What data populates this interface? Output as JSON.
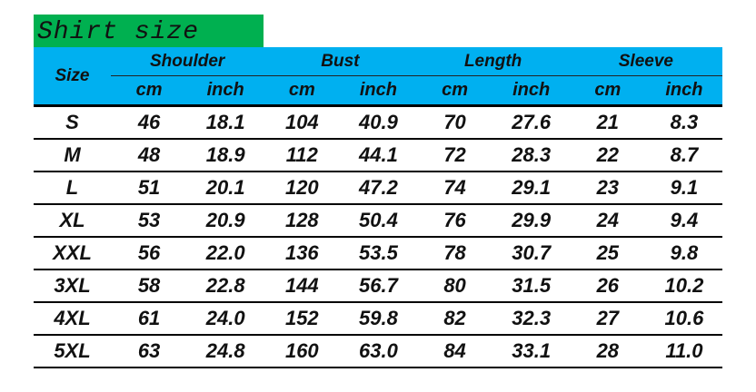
{
  "title": "Shirt size",
  "colors": {
    "title_bg": "#00b050",
    "header_bg": "#00b0f0"
  },
  "header": {
    "size": "Size",
    "groups": [
      "Shoulder",
      "Bust",
      "Length",
      "Sleeve"
    ],
    "units": [
      "cm",
      "inch",
      "cm",
      "inch",
      "cm",
      "inch",
      "cm",
      "inch"
    ]
  },
  "rows": [
    [
      "S",
      "46",
      "18.1",
      "104",
      "40.9",
      "70",
      "27.6",
      "21",
      "8.3"
    ],
    [
      "M",
      "48",
      "18.9",
      "112",
      "44.1",
      "72",
      "28.3",
      "22",
      "8.7"
    ],
    [
      "L",
      "51",
      "20.1",
      "120",
      "47.2",
      "74",
      "29.1",
      "23",
      "9.1"
    ],
    [
      "XL",
      "53",
      "20.9",
      "128",
      "50.4",
      "76",
      "29.9",
      "24",
      "9.4"
    ],
    [
      "XXL",
      "56",
      "22.0",
      "136",
      "53.5",
      "78",
      "30.7",
      "25",
      "9.8"
    ],
    [
      "3XL",
      "58",
      "22.8",
      "144",
      "56.7",
      "80",
      "31.5",
      "26",
      "10.2"
    ],
    [
      "4XL",
      "61",
      "24.0",
      "152",
      "59.8",
      "82",
      "32.3",
      "27",
      "10.6"
    ],
    [
      "5XL",
      "63",
      "24.8",
      "160",
      "63.0",
      "84",
      "33.1",
      "28",
      "11.0"
    ]
  ]
}
